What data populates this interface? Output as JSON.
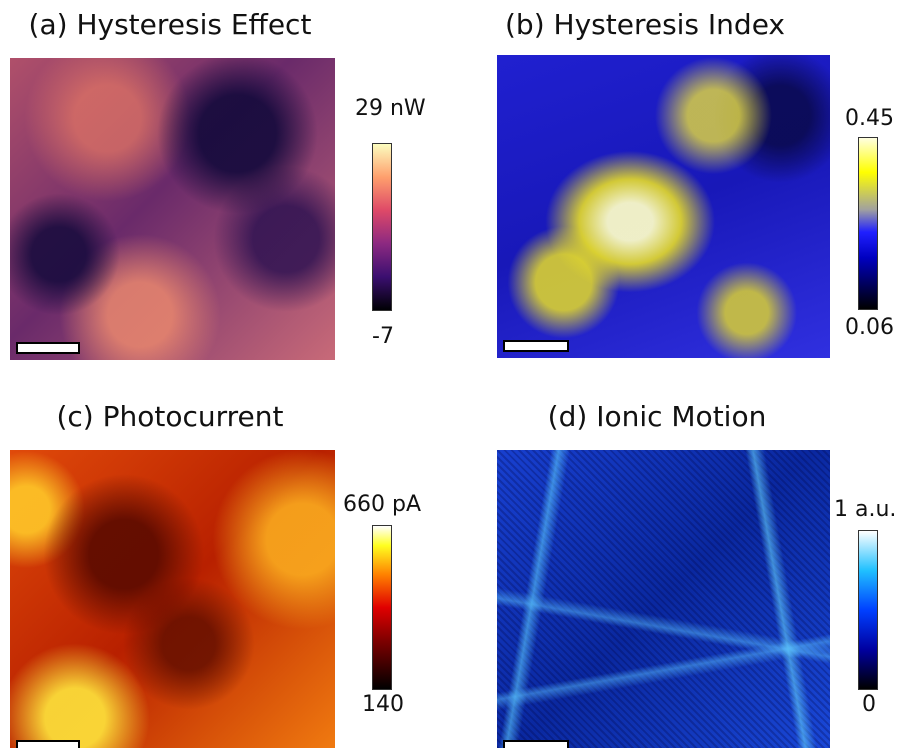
{
  "panels": [
    {
      "title": "(a) Hysteresis Effect",
      "colorbar": {
        "max": "29 nW",
        "min": "-7"
      }
    },
    {
      "title": "(b)  Hysteresis Index",
      "colorbar": {
        "max": "0.45",
        "min": "0.06"
      }
    },
    {
      "title": "(c)  Photocurrent",
      "colorbar": {
        "max": "660 pA",
        "min": "140"
      }
    },
    {
      "title": "(d)  Ionic Motion",
      "colorbar": {
        "max": "1 a.u.",
        "min": "0"
      }
    }
  ]
}
